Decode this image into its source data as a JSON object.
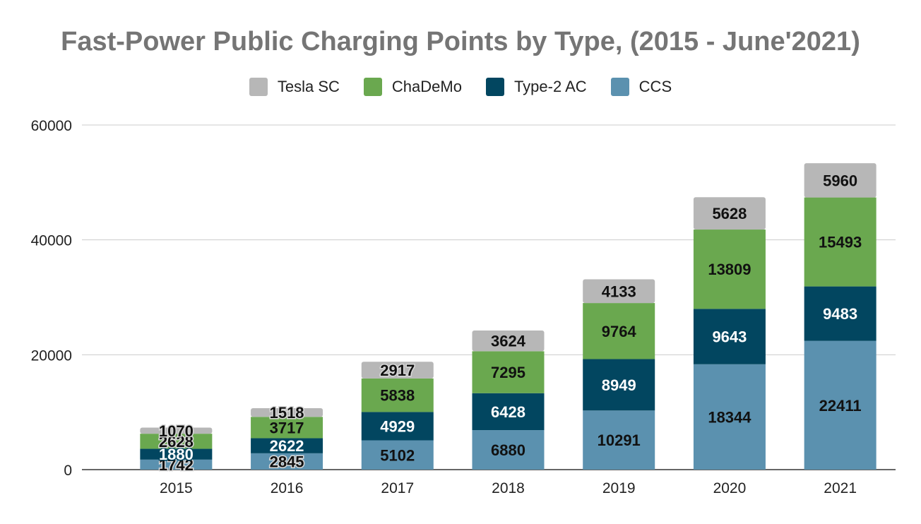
{
  "chart_data": {
    "type": "bar",
    "stacked": true,
    "title": "Fast-Power Public Charging Points by Type, (2015 - June'2021)",
    "categories": [
      "2015",
      "2016",
      "2017",
      "2018",
      "2019",
      "2020",
      "2021"
    ],
    "series": [
      {
        "name": "CCS",
        "color": "#5b91af",
        "label_color": "#111111",
        "values": [
          1742,
          2845,
          5102,
          6880,
          10291,
          18344,
          22411
        ]
      },
      {
        "name": "Type-2 AC",
        "color": "#024660",
        "label_color": "#ffffff",
        "values": [
          1880,
          2622,
          4929,
          6428,
          8949,
          9643,
          9483
        ]
      },
      {
        "name": "ChaDeMo",
        "color": "#6aa84f",
        "label_color": "#111111",
        "values": [
          2628,
          3717,
          5838,
          7295,
          9764,
          13809,
          15493
        ]
      },
      {
        "name": "Tesla SC",
        "color": "#b7b7b7",
        "label_color": "#111111",
        "values": [
          1070,
          1518,
          2917,
          3624,
          4133,
          5628,
          5960
        ]
      }
    ],
    "legend_order": [
      "Tesla SC",
      "ChaDeMo",
      "Type-2 AC",
      "CCS"
    ],
    "y_ticks": [
      "0",
      "20000",
      "40000",
      "60000"
    ],
    "ylim": [
      0,
      60000
    ],
    "grid": true,
    "legend_position": "top"
  }
}
